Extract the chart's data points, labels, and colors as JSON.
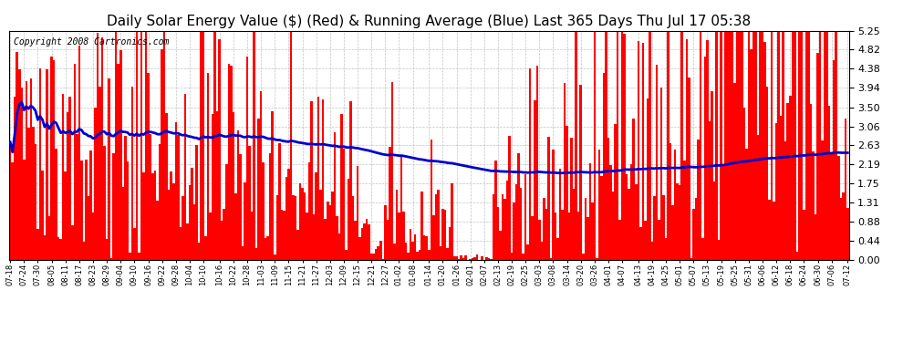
{
  "title": "Daily Solar Energy Value ($) (Red) & Running Average (Blue) Last 365 Days Thu Jul 17 05:38",
  "copyright": "Copyright 2008 Cartronics.com",
  "yticks": [
    0.0,
    0.44,
    0.88,
    1.31,
    1.75,
    2.19,
    2.63,
    3.06,
    3.5,
    3.94,
    4.38,
    4.82,
    5.25
  ],
  "ymax": 5.25,
  "bar_color": "#ff0000",
  "line_color": "#0000cc",
  "bg_color": "#ffffff",
  "grid_color": "#aaaaaa",
  "title_fontsize": 11,
  "copyright_fontsize": 7,
  "x_labels": [
    "07-18",
    "07-24",
    "07-30",
    "08-05",
    "08-11",
    "08-17",
    "08-23",
    "08-29",
    "09-04",
    "09-10",
    "09-16",
    "09-22",
    "09-28",
    "10-04",
    "10-10",
    "10-16",
    "10-22",
    "10-28",
    "11-03",
    "11-09",
    "11-15",
    "11-21",
    "11-27",
    "12-03",
    "12-09",
    "12-15",
    "12-21",
    "12-27",
    "01-02",
    "01-08",
    "01-14",
    "01-20",
    "01-26",
    "02-01",
    "02-07",
    "02-13",
    "02-19",
    "02-25",
    "03-03",
    "03-08",
    "03-14",
    "03-20",
    "03-26",
    "04-01",
    "04-07",
    "04-13",
    "04-19",
    "04-25",
    "05-01",
    "05-07",
    "05-13",
    "05-19",
    "05-25",
    "05-31",
    "06-06",
    "06-12",
    "06-18",
    "06-24",
    "06-30",
    "07-06",
    "07-12"
  ]
}
